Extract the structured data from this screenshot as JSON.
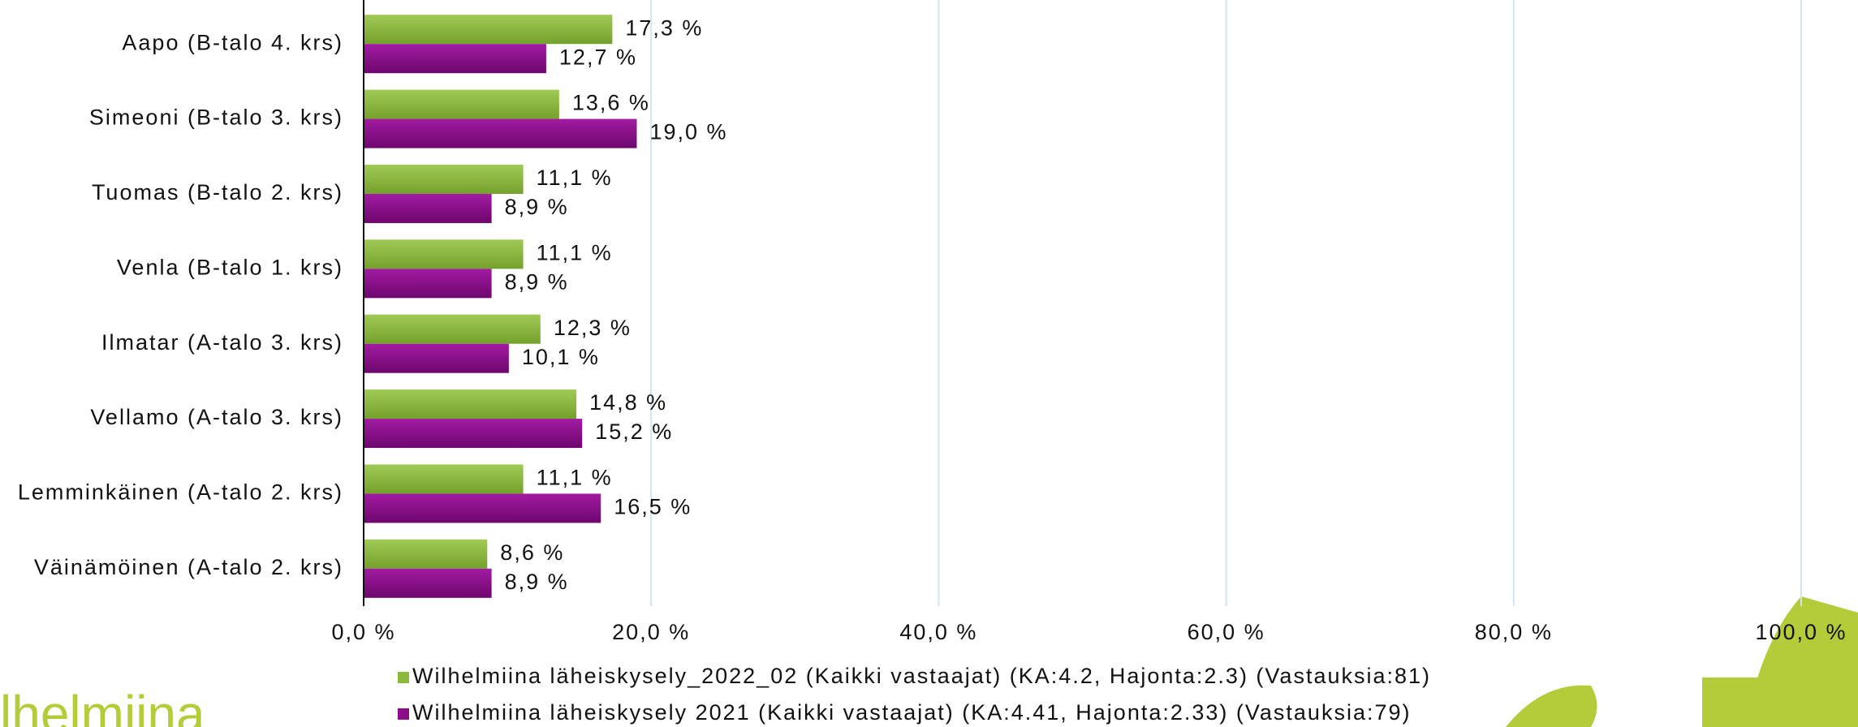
{
  "chart_data": {
    "type": "barh",
    "categories": [
      "Aapo (B-talo 4. krs)",
      "Simeoni (B-talo 3. krs)",
      "Tuomas (B-talo 2. krs)",
      "Venla (B-talo 1. krs)",
      "Ilmatar (A-talo 3. krs)",
      "Vellamo (A-talo 3. krs)",
      "Lemminkäinen (A-talo 2. krs)",
      "Väinämöinen (A-talo 2. krs)"
    ],
    "series": [
      {
        "name": "Wilhelmiina läheiskysely_2022_02 (Kaikki vastaajat) (KA:4.2, Hajonta:2.3) (Vastauksia:81)",
        "color": "#8cb83c",
        "values": [
          17.3,
          13.6,
          11.1,
          11.1,
          12.3,
          14.8,
          11.1,
          8.6
        ],
        "value_labels": [
          "17,3 %",
          "13,6 %",
          "11,1 %",
          "11,1 %",
          "12,3 %",
          "14,8 %",
          "11,1 %",
          "8,6 %"
        ]
      },
      {
        "name": "Wilhelmiina läheiskysely 2021 (Kaikki vastaajat) (KA:4.41, Hajonta:2.33) (Vastauksia:79)",
        "color": "#8b0d8b",
        "values": [
          12.7,
          19.0,
          8.9,
          8.9,
          10.1,
          15.2,
          16.5,
          8.9
        ],
        "value_labels": [
          "12,7 %",
          "19,0 %",
          "8,9 %",
          "8,9 %",
          "10,1 %",
          "15,2 %",
          "16,5 %",
          "8,9 %"
        ]
      }
    ],
    "xlim": [
      0,
      100
    ],
    "xticks": [
      {
        "value": 0,
        "label": "0,0 %"
      },
      {
        "value": 20,
        "label": "20,0 %"
      },
      {
        "value": 40,
        "label": "40,0 %"
      },
      {
        "value": 60,
        "label": "60,0 %"
      },
      {
        "value": 80,
        "label": "80,0 %"
      },
      {
        "value": 100,
        "label": "100,0 %"
      }
    ],
    "grid": true
  },
  "logo": "lhelmiina"
}
